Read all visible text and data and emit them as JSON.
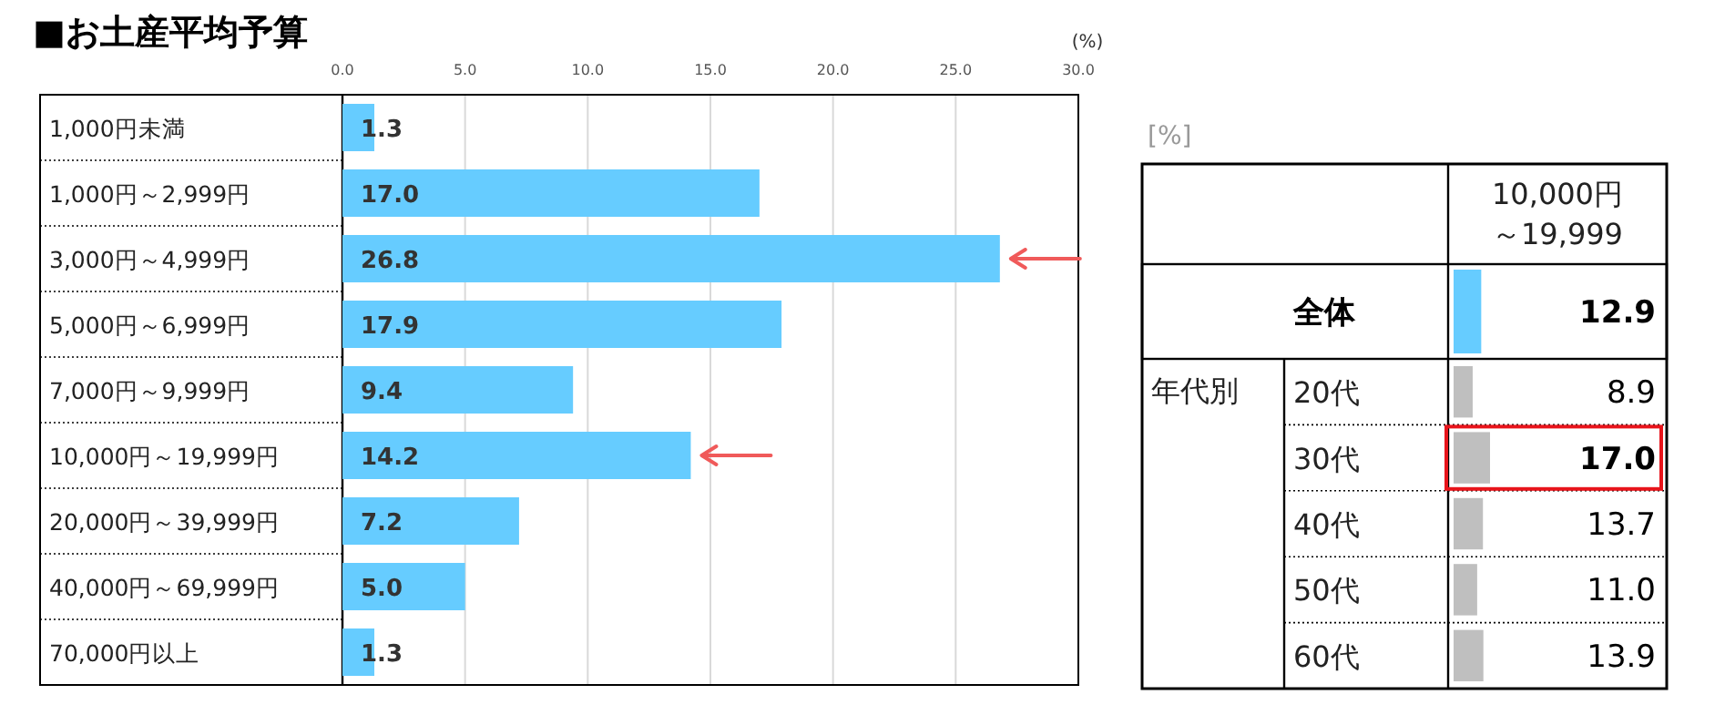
{
  "chart_data": [
    {
      "type": "bar",
      "orientation": "horizontal",
      "title": "■お土産平均予算",
      "xlabel": "(%)",
      "categories": [
        "1,000円未満",
        "1,000円～2,999円",
        "3,000円～4,999円",
        "5,000円～6,999円",
        "7,000円～9,999円",
        "10,000円～19,999円",
        "20,000円～39,999円",
        "40,000円～69,999円",
        "70,000円以上"
      ],
      "values": [
        1.3,
        17.0,
        26.8,
        17.9,
        9.4,
        14.2,
        7.2,
        5.0,
        1.3
      ],
      "value_labels": [
        "1.3",
        "17.0",
        "26.8",
        "17.9",
        "9.4",
        "14.2",
        "7.2",
        "5.0",
        "1.3"
      ],
      "color": "#66ccff",
      "xlim": [
        0,
        30
      ],
      "xticks": [
        {
          "value": 0,
          "label": "0.0"
        },
        {
          "value": 5,
          "label": "5.0"
        },
        {
          "value": 10,
          "label": "10.0"
        },
        {
          "value": 15,
          "label": "15.0"
        },
        {
          "value": 20,
          "label": "20.0"
        },
        {
          "value": 25,
          "label": "25.0"
        },
        {
          "value": 30,
          "label": "30.0"
        }
      ],
      "grid": "x"
    },
    {
      "type": "bar",
      "orientation": "horizontal",
      "title": "10,000円～19,999",
      "ylabel": "年代別",
      "annotations": [
        "[%]"
      ],
      "categories": [
        "全体",
        "20代",
        "30代",
        "40代",
        "50代",
        "60代"
      ],
      "values": [
        12.9,
        8.9,
        17.0,
        13.7,
        11.0,
        13.9
      ],
      "value_labels": [
        "12.9",
        "8.9",
        "17.0",
        "13.7",
        "11.0",
        "13.9"
      ],
      "colors": [
        "#66ccff",
        "#bfbfbf",
        "#bfbfbf",
        "#bfbfbf",
        "#bfbfbf",
        "#bfbfbf"
      ]
    }
  ]
}
